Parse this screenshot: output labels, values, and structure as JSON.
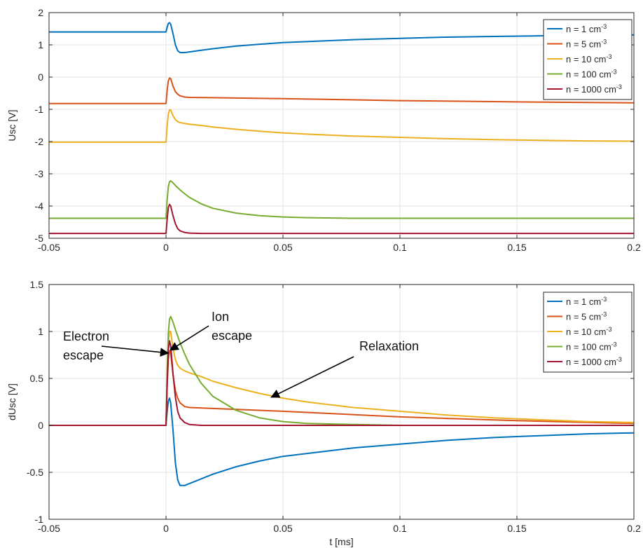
{
  "chart_data": [
    {
      "type": "line",
      "xlabel": "",
      "ylabel": "Usc [V]",
      "xlim": [
        -0.05,
        0.2
      ],
      "ylim": [
        -5,
        2
      ],
      "xticks": [
        -0.05,
        0,
        0.05,
        0.1,
        0.15,
        0.2
      ],
      "xtick_labels": [
        "-0.05",
        "0",
        "0.05",
        "0.1",
        "0.15",
        "0.2"
      ],
      "yticks": [
        -5,
        -4,
        -3,
        -2,
        -1,
        0,
        1,
        2
      ],
      "ytick_labels": [
        "-5",
        "-4",
        "-3",
        "-2",
        "-1",
        "0",
        "1",
        "2"
      ],
      "grid": true,
      "legend_position": "top-right",
      "series": [
        {
          "name": "n = 1 cm-3",
          "legend_base": "n = 1 cm",
          "legend_sup": "-3",
          "color": "#0072BD",
          "x": [
            -0.05,
            0,
            0.0005,
            0.001,
            0.0015,
            0.002,
            0.003,
            0.004,
            0.005,
            0.006,
            0.008,
            0.01,
            0.015,
            0.02,
            0.03,
            0.04,
            0.05,
            0.06,
            0.08,
            0.1,
            0.12,
            0.14,
            0.16,
            0.18,
            0.2
          ],
          "y": [
            1.4,
            1.4,
            1.55,
            1.66,
            1.69,
            1.64,
            1.35,
            1.0,
            0.82,
            0.76,
            0.76,
            0.78,
            0.83,
            0.88,
            0.96,
            1.02,
            1.07,
            1.1,
            1.16,
            1.2,
            1.24,
            1.26,
            1.28,
            1.3,
            1.31
          ]
        },
        {
          "name": "n = 5 cm-3",
          "legend_base": "n = 5 cm",
          "legend_sup": "-3",
          "color": "#D95319",
          "x": [
            -0.05,
            0,
            0.0005,
            0.001,
            0.0015,
            0.002,
            0.003,
            0.004,
            0.005,
            0.006,
            0.008,
            0.01,
            0.02,
            0.05,
            0.1,
            0.15,
            0.2
          ],
          "y": [
            -0.82,
            -0.82,
            -0.4,
            -0.12,
            -0.03,
            -0.05,
            -0.28,
            -0.45,
            -0.53,
            -0.58,
            -0.62,
            -0.63,
            -0.64,
            -0.67,
            -0.73,
            -0.77,
            -0.8
          ]
        },
        {
          "name": "n = 10 cm-3",
          "legend_base": "n = 10 cm",
          "legend_sup": "-3",
          "color": "#EDB120",
          "x": [
            -0.05,
            0,
            0.0005,
            0.001,
            0.0015,
            0.002,
            0.003,
            0.004,
            0.005,
            0.006,
            0.008,
            0.01,
            0.015,
            0.02,
            0.03,
            0.04,
            0.05,
            0.06,
            0.08,
            0.1,
            0.12,
            0.14,
            0.16,
            0.18,
            0.2
          ],
          "y": [
            -2.02,
            -2.02,
            -1.5,
            -1.15,
            -1.02,
            -1.02,
            -1.2,
            -1.32,
            -1.38,
            -1.41,
            -1.44,
            -1.46,
            -1.5,
            -1.55,
            -1.62,
            -1.68,
            -1.73,
            -1.77,
            -1.83,
            -1.87,
            -1.91,
            -1.94,
            -1.96,
            -1.98,
            -1.99
          ]
        },
        {
          "name": "n = 100 cm-3",
          "legend_base": "n = 100 cm",
          "legend_sup": "-3",
          "color": "#77AC30",
          "x": [
            -0.05,
            0,
            0.0005,
            0.001,
            0.0015,
            0.002,
            0.003,
            0.004,
            0.006,
            0.008,
            0.01,
            0.015,
            0.02,
            0.03,
            0.04,
            0.05,
            0.06,
            0.08,
            0.1,
            0.15,
            0.2
          ],
          "y": [
            -4.38,
            -4.38,
            -3.8,
            -3.4,
            -3.25,
            -3.22,
            -3.28,
            -3.36,
            -3.5,
            -3.62,
            -3.73,
            -3.93,
            -4.07,
            -4.22,
            -4.3,
            -4.34,
            -4.36,
            -4.38,
            -4.38,
            -4.38,
            -4.38
          ]
        },
        {
          "name": "n = 1000 cm-3",
          "legend_base": "n = 1000 cm",
          "legend_sup": "-3",
          "color": "#A2142F",
          "x": [
            -0.05,
            0,
            0.0005,
            0.001,
            0.0015,
            0.002,
            0.003,
            0.004,
            0.005,
            0.006,
            0.008,
            0.01,
            0.015,
            0.2
          ],
          "y": [
            -4.85,
            -4.85,
            -4.4,
            -4.05,
            -3.95,
            -4.0,
            -4.3,
            -4.55,
            -4.7,
            -4.77,
            -4.82,
            -4.84,
            -4.85,
            -4.85
          ]
        }
      ]
    },
    {
      "type": "line",
      "xlabel": "t [ms]",
      "ylabel": "dUsc [V]",
      "xlim": [
        -0.05,
        0.2
      ],
      "ylim": [
        -1,
        1.5
      ],
      "xticks": [
        -0.05,
        0,
        0.05,
        0.1,
        0.15,
        0.2
      ],
      "xtick_labels": [
        "-0.05",
        "0",
        "0.05",
        "0.1",
        "0.15",
        "0.2"
      ],
      "yticks": [
        -1,
        -0.5,
        0,
        0.5,
        1,
        1.5
      ],
      "ytick_labels": [
        "-1",
        "-0.5",
        "0",
        "0.5",
        "1",
        "1.5"
      ],
      "grid": true,
      "legend_position": "top-right",
      "annotations": [
        {
          "lines": [
            "Electron",
            "escape"
          ],
          "target_x": 0.001,
          "target_y": 0.77
        },
        {
          "lines": [
            "Ion",
            "escape"
          ],
          "target_x": 0.0018,
          "target_y": 0.8
        },
        {
          "lines": [
            "Relaxation"
          ],
          "target_x": 0.045,
          "target_y": 0.3
        }
      ],
      "series": [
        {
          "name": "n = 1 cm-3",
          "legend_base": "n = 1 cm",
          "legend_sup": "-3",
          "color": "#0072BD",
          "x": [
            -0.05,
            0,
            0.0005,
            0.001,
            0.0015,
            0.002,
            0.003,
            0.004,
            0.005,
            0.006,
            0.008,
            0.01,
            0.015,
            0.02,
            0.03,
            0.04,
            0.05,
            0.06,
            0.08,
            0.1,
            0.12,
            0.14,
            0.16,
            0.18,
            0.2
          ],
          "y": [
            0,
            0,
            0.15,
            0.26,
            0.29,
            0.24,
            -0.05,
            -0.4,
            -0.58,
            -0.64,
            -0.64,
            -0.62,
            -0.57,
            -0.52,
            -0.44,
            -0.38,
            -0.33,
            -0.3,
            -0.24,
            -0.2,
            -0.16,
            -0.13,
            -0.11,
            -0.09,
            -0.08
          ]
        },
        {
          "name": "n = 5 cm-3",
          "legend_base": "n = 5 cm",
          "legend_sup": "-3",
          "color": "#D95319",
          "x": [
            -0.05,
            0,
            0.0005,
            0.001,
            0.0015,
            0.002,
            0.003,
            0.004,
            0.005,
            0.006,
            0.008,
            0.01,
            0.02,
            0.05,
            0.1,
            0.15,
            0.2
          ],
          "y": [
            0,
            0,
            0.42,
            0.7,
            0.79,
            0.77,
            0.54,
            0.37,
            0.29,
            0.24,
            0.2,
            0.19,
            0.18,
            0.15,
            0.09,
            0.05,
            0.02
          ]
        },
        {
          "name": "n = 10 cm-3",
          "legend_base": "n = 10 cm",
          "legend_sup": "-3",
          "color": "#EDB120",
          "x": [
            -0.05,
            0,
            0.0005,
            0.001,
            0.0015,
            0.002,
            0.003,
            0.004,
            0.005,
            0.006,
            0.008,
            0.01,
            0.015,
            0.02,
            0.03,
            0.04,
            0.05,
            0.06,
            0.08,
            0.1,
            0.12,
            0.14,
            0.16,
            0.18,
            0.2
          ],
          "y": [
            0,
            0,
            0.52,
            0.87,
            1.0,
            1.0,
            0.82,
            0.7,
            0.64,
            0.61,
            0.58,
            0.56,
            0.52,
            0.47,
            0.4,
            0.34,
            0.29,
            0.25,
            0.19,
            0.15,
            0.11,
            0.08,
            0.06,
            0.04,
            0.03
          ]
        },
        {
          "name": "n = 100 cm-3",
          "legend_base": "n = 100 cm",
          "legend_sup": "-3",
          "color": "#77AC30",
          "x": [
            -0.05,
            0,
            0.0005,
            0.001,
            0.0015,
            0.002,
            0.003,
            0.004,
            0.006,
            0.008,
            0.01,
            0.015,
            0.02,
            0.03,
            0.04,
            0.05,
            0.06,
            0.08,
            0.1,
            0.15,
            0.2
          ],
          "y": [
            0,
            0,
            0.58,
            0.98,
            1.13,
            1.16,
            1.1,
            1.02,
            0.88,
            0.76,
            0.65,
            0.45,
            0.31,
            0.16,
            0.08,
            0.04,
            0.02,
            0.01,
            0.0,
            0.0,
            0.0
          ]
        },
        {
          "name": "n = 1000 cm-3",
          "legend_base": "n = 1000 cm",
          "legend_sup": "-3",
          "color": "#A2142F",
          "x": [
            -0.05,
            0,
            0.0005,
            0.001,
            0.0015,
            0.002,
            0.003,
            0.004,
            0.005,
            0.006,
            0.008,
            0.01,
            0.015,
            0.2
          ],
          "y": [
            0,
            0,
            0.45,
            0.8,
            0.9,
            0.85,
            0.55,
            0.3,
            0.15,
            0.08,
            0.03,
            0.01,
            0.0,
            0.0
          ]
        }
      ]
    }
  ]
}
